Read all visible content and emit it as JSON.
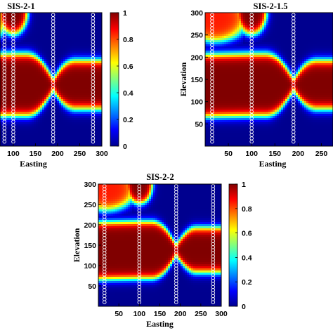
{
  "chart_data": [
    {
      "type": "heatmap",
      "title": "SIS-2-1",
      "xlabel": "Easting",
      "ylabel": "",
      "x_ticks": [
        "100",
        "150",
        "200",
        "250",
        "300"
      ],
      "y_ticks": [],
      "colorbar_ticks": [
        "0",
        "0.2",
        "0.4",
        "0.6",
        "0.8",
        "1"
      ],
      "colorbar_range": [
        0,
        1
      ],
      "xlim": [
        70,
        300
      ],
      "ylim": [
        0,
        300
      ],
      "colormap": "jet",
      "well_x": [
        80,
        100,
        190,
        280
      ],
      "sample_marker": "open-circle"
    },
    {
      "type": "heatmap",
      "title": "SIS-2-1.5",
      "xlabel": "Easting",
      "ylabel": "Elevation",
      "x_ticks": [
        "50",
        "100",
        "150",
        "200",
        "250"
      ],
      "y_ticks": [
        "50",
        "100",
        "150",
        "200",
        "250",
        "300"
      ],
      "xlim": [
        0,
        275
      ],
      "ylim": [
        0,
        300
      ],
      "colormap": "jet",
      "well_x": [
        15,
        100,
        190,
        280
      ],
      "sample_marker": "open-circle"
    },
    {
      "type": "heatmap",
      "title": "SIS-2-2",
      "xlabel": "Easting",
      "ylabel": "Elevation",
      "x_ticks": [
        "50",
        "100",
        "150",
        "200",
        "250",
        "300"
      ],
      "y_ticks": [
        "50",
        "100",
        "150",
        "200",
        "250",
        "300"
      ],
      "colorbar_ticks": [
        "0",
        "0.2",
        "0.4",
        "0.6",
        "0.8",
        "1"
      ],
      "colorbar_range": [
        0,
        1
      ],
      "xlim": [
        0,
        300
      ],
      "ylim": [
        0,
        300
      ],
      "colormap": "jet",
      "well_x": [
        15,
        100,
        190,
        280
      ],
      "sample_marker": "open-circle"
    }
  ]
}
